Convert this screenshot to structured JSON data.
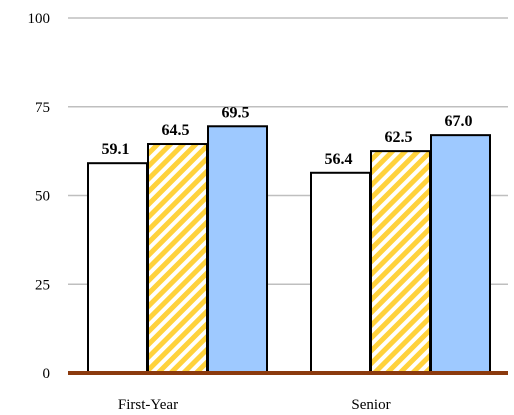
{
  "chart_data": {
    "type": "bar",
    "categories": [
      "First-Year",
      "Senior"
    ],
    "series": [
      {
        "values": [
          59.1,
          56.4
        ],
        "fill": "#ffffff",
        "pattern": "none"
      },
      {
        "values": [
          64.5,
          62.5
        ],
        "fill": "#ffd23c",
        "pattern": "diagonal-hatch"
      },
      {
        "values": [
          69.5,
          67.0
        ],
        "fill": "#9ec9ff",
        "pattern": "none"
      }
    ],
    "data_labels": [
      [
        "59.1",
        "56.4"
      ],
      [
        "64.5",
        "62.5"
      ],
      [
        "69.5",
        "67.0"
      ]
    ],
    "yticks": [
      "0",
      "25",
      "50",
      "75",
      "100"
    ],
    "ylim": [
      0,
      100
    ],
    "grid": true,
    "legend": "none",
    "colors": {
      "gridline": "#bfbfbf",
      "baseline": "#8b3a0e",
      "bar_outline": "#000000",
      "hatch_stroke": "#ffffff"
    }
  }
}
